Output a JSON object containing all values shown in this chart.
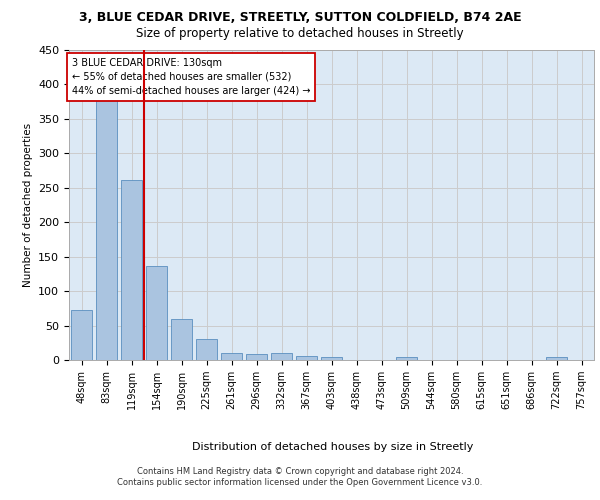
{
  "title1": "3, BLUE CEDAR DRIVE, STREETLY, SUTTON COLDFIELD, B74 2AE",
  "title2": "Size of property relative to detached houses in Streetly",
  "xlabel": "Distribution of detached houses by size in Streetly",
  "ylabel": "Number of detached properties",
  "bar_labels": [
    "48sqm",
    "83sqm",
    "119sqm",
    "154sqm",
    "190sqm",
    "225sqm",
    "261sqm",
    "296sqm",
    "332sqm",
    "367sqm",
    "403sqm",
    "438sqm",
    "473sqm",
    "509sqm",
    "544sqm",
    "580sqm",
    "615sqm",
    "651sqm",
    "686sqm",
    "722sqm",
    "757sqm"
  ],
  "bar_values": [
    72,
    379,
    261,
    136,
    60,
    30,
    10,
    9,
    10,
    6,
    5,
    0,
    0,
    5,
    0,
    0,
    0,
    0,
    0,
    4,
    0
  ],
  "bar_color": "#aac4e0",
  "bar_edge_color": "#5a8fbf",
  "vline_x": 2.5,
  "vline_color": "#cc0000",
  "annotation_line1": "3 BLUE CEDAR DRIVE: 130sqm",
  "annotation_line2": "← 55% of detached houses are smaller (532)",
  "annotation_line3": "44% of semi-detached houses are larger (424) →",
  "annotation_box_color": "#ffffff",
  "annotation_box_edge": "#cc0000",
  "footer1": "Contains HM Land Registry data © Crown copyright and database right 2024.",
  "footer2": "Contains public sector information licensed under the Open Government Licence v3.0.",
  "ylim": [
    0,
    450
  ],
  "grid_color": "#cccccc",
  "bg_color": "#dce9f5",
  "fig_bg": "#ffffff",
  "title1_fontsize": 9,
  "title2_fontsize": 8.5,
  "ylabel_fontsize": 7.5,
  "xlabel_fontsize": 8,
  "tick_fontsize": 7,
  "ytick_fontsize": 8,
  "annot_fontsize": 7,
  "footer_fontsize": 6
}
